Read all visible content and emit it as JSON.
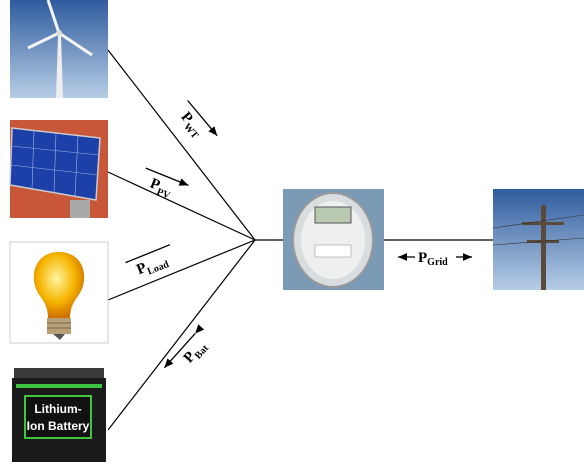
{
  "flows": [
    {
      "symbol": "P",
      "subscript": "WT"
    },
    {
      "symbol": "P",
      "subscript": "PV"
    },
    {
      "symbol": "P",
      "subscript": "Load"
    },
    {
      "symbol": "P",
      "subscript": "Bat"
    },
    {
      "symbol": "P",
      "subscript": "Grid"
    }
  ],
  "battery_label": [
    "Lithium-",
    "Ion Battery"
  ]
}
